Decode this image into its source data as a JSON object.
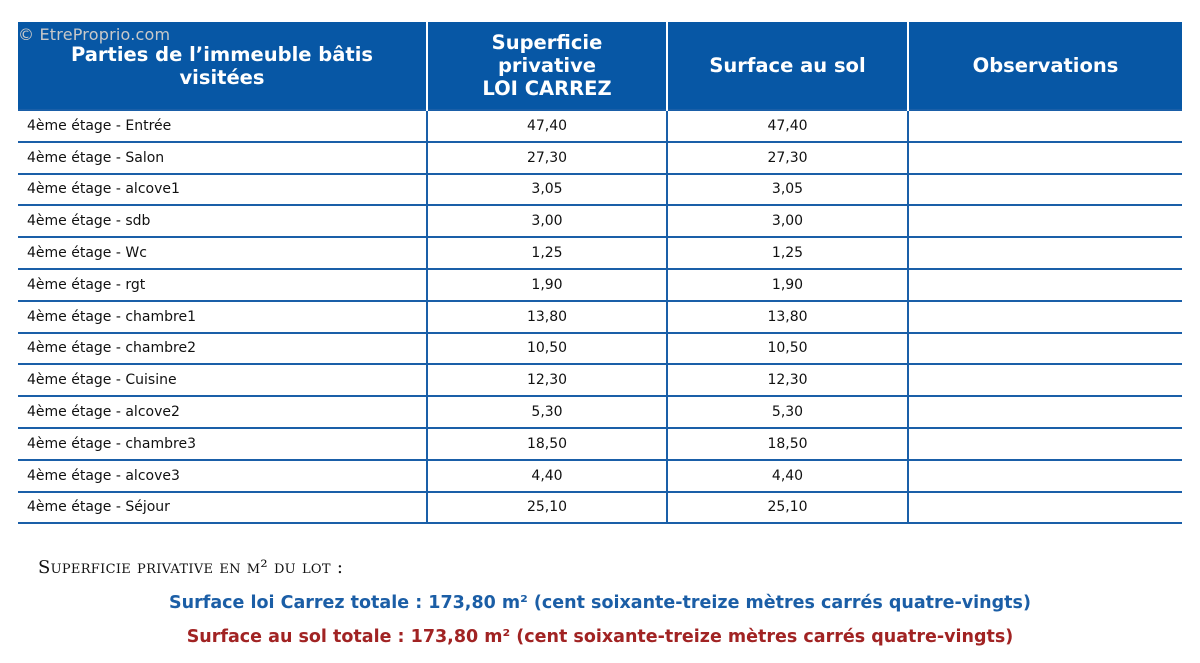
{
  "watermark": "© EtreProprio.com",
  "table": {
    "headers": [
      [
        "Parties de l’immeuble bâtis",
        "visitées"
      ],
      [
        "Superficie",
        "privative",
        "LOI CARREZ"
      ],
      [
        "Surface au sol"
      ],
      [
        "Observations"
      ]
    ],
    "rows": [
      {
        "room": "4ème étage - Entrée",
        "carrez": "47,40",
        "sol": "47,40",
        "obs": ""
      },
      {
        "room": "4ème étage - Salon",
        "carrez": "27,30",
        "sol": "27,30",
        "obs": ""
      },
      {
        "room": "4ème étage - alcove1",
        "carrez": "3,05",
        "sol": "3,05",
        "obs": ""
      },
      {
        "room": "4ème étage - sdb",
        "carrez": "3,00",
        "sol": "3,00",
        "obs": ""
      },
      {
        "room": "4ème étage - Wc",
        "carrez": "1,25",
        "sol": "1,25",
        "obs": ""
      },
      {
        "room": "4ème étage - rgt",
        "carrez": "1,90",
        "sol": "1,90",
        "obs": ""
      },
      {
        "room": "4ème étage - chambre1",
        "carrez": "13,80",
        "sol": "13,80",
        "obs": ""
      },
      {
        "room": "4ème étage - chambre2",
        "carrez": "10,50",
        "sol": "10,50",
        "obs": ""
      },
      {
        "room": "4ème étage - Cuisine",
        "carrez": "12,30",
        "sol": "12,30",
        "obs": ""
      },
      {
        "room": "4ème étage - alcove2",
        "carrez": "5,30",
        "sol": "5,30",
        "obs": ""
      },
      {
        "room": "4ème étage - chambre3",
        "carrez": "18,50",
        "sol": "18,50",
        "obs": ""
      },
      {
        "room": "4ème étage - alcove3",
        "carrez": "4,40",
        "sol": "4,40",
        "obs": ""
      },
      {
        "room": "4ème étage - Séjour",
        "carrez": "25,10",
        "sol": "25,10",
        "obs": ""
      }
    ]
  },
  "summary": {
    "label": "Superficie privative en m² du lot :",
    "carrez_total": "Surface loi Carrez totale : 173,80 m² (cent soixante-treize mètres carrés quatre-vingts)",
    "sol_total": "Surface au sol totale : 173,80 m² (cent soixante-treize mètres carrés quatre-vingts)"
  },
  "colors": {
    "header_bg": "#0757a5",
    "carrez_total": "#1b5ea6",
    "sol_total": "#a12323"
  }
}
